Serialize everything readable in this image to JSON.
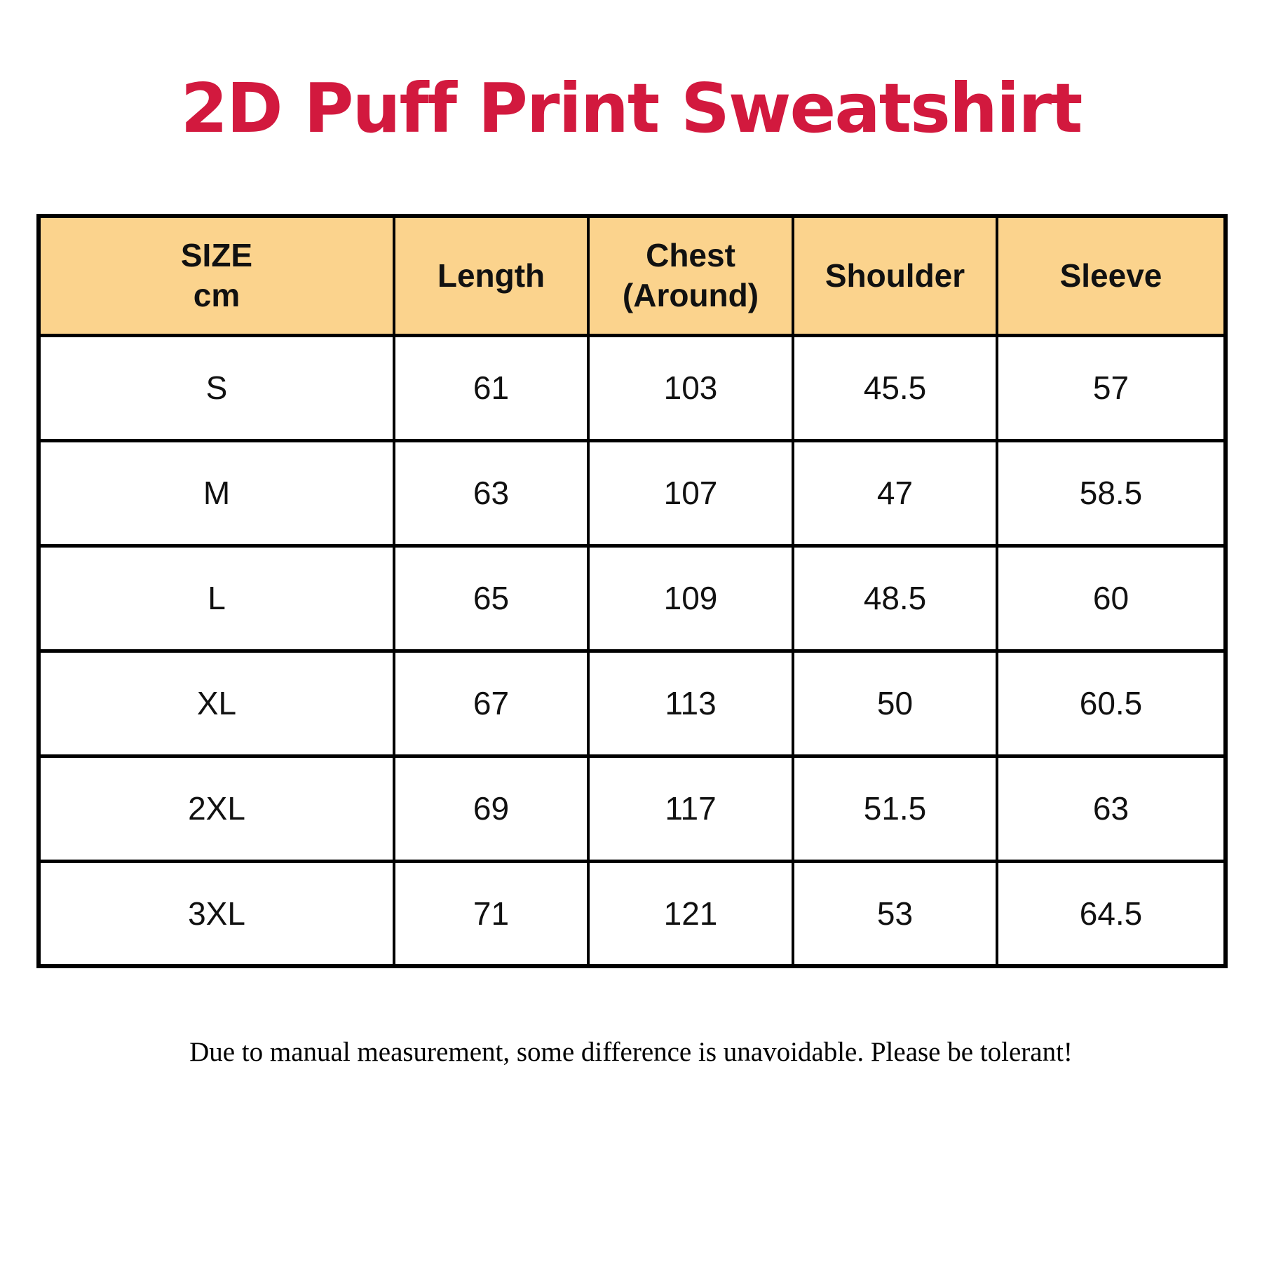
{
  "title": "2D Puff Print Sweatshirt",
  "footer_note": "Due to manual measurement, some difference is unavoidable. Please be tolerant!",
  "colors": {
    "title_red": "#D2193E",
    "header_bg": "#FBD38D",
    "border_black": "#000000"
  },
  "table": {
    "header": {
      "size_line1": "SIZE",
      "size_line2": "cm",
      "length": "Length",
      "chest_line1": "Chest",
      "chest_line2": "(Around)",
      "shoulder": "Shoulder",
      "sleeve": "Sleeve"
    }
  },
  "chart_data": {
    "type": "table",
    "title": "2D Puff Print Sweatshirt",
    "unit": "cm",
    "columns": [
      "SIZE cm",
      "Length",
      "Chest (Around)",
      "Shoulder",
      "Sleeve"
    ],
    "rows": [
      [
        "S",
        "61",
        "103",
        "45.5",
        "57"
      ],
      [
        "M",
        "63",
        "107",
        "47",
        "58.5"
      ],
      [
        "L",
        "65",
        "109",
        "48.5",
        "60"
      ],
      [
        "XL",
        "67",
        "113",
        "50",
        "60.5"
      ],
      [
        "2XL",
        "69",
        "117",
        "51.5",
        "63"
      ],
      [
        "3XL",
        "71",
        "121",
        "53",
        "64.5"
      ]
    ]
  }
}
